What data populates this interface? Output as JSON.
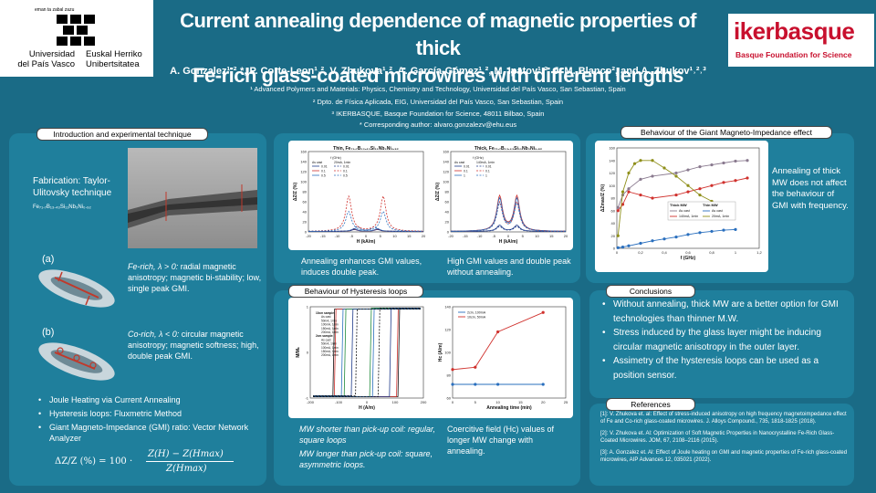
{
  "header": {
    "title_line1": "Current annealing dependence of magnetic properties of thick",
    "title_line2": "Fe-rich glass-coated microwires with different lengths",
    "authors": "A. Gonzalez¹˒²˒*, P. Corte-Leon¹˒², V. Zhukova¹˒², A. García-Gómez¹˒², M. Ipatov¹˒², J. M. Blanco², and A. Zhukov¹˒²˒³",
    "affiliations": [
      "¹ Advanced Polymers and Materials: Physics, Chemistry and Technology, Universidad del País Vasco, San Sebastian, Spain",
      "² Dpto. de Física Aplicada, EIG, Universidad del País Vasco, San Sebastian, Spain",
      "³ IKERBASQUE, Basque Foundation for Science, 48011 Bilbao, Spain",
      "* Corresponding author: alvaro.gonzalezv@ehu.eus"
    ],
    "upv_logo": {
      "motto": "eman ta zabal zazu",
      "left1": "Universidad",
      "left2": "del País Vasco",
      "right1": "Euskal Herriko",
      "right2": "Unibertsitatea"
    },
    "ikerbasque_logo": {
      "name": "ikerbasque",
      "sub": "Basque Foundation for Science"
    }
  },
  "intro": {
    "header": "Introduction and experimental technique",
    "fabrication": "Fabrication: Taylor-Ulitovsky technique",
    "composition": "Fe₇₁.₇B₁₃.₄₃Si₁₁Nb₃Ni₀.₉₂",
    "label_a": "(a)",
    "label_b": "(b)",
    "fe_rich_lead": "Fe-rich, λ > 0:",
    "fe_rich_text": " radial magnetic anisotropy; magnetic bi-stability; low, single peak GMI.",
    "co_rich_lead": "Co-rich, λ < 0:",
    "co_rich_text": " circular magnetic anisotropy; magnetic softness; high, double peak GMI.",
    "bullets": [
      "Joule Heating via Current Annealing",
      "Hysteresis loops: Fluxmetric Method",
      "Giant Magneto-Impedance (GMI) ratio: Vector Network Analyzer"
    ],
    "formula_lhs": "ΔZ/Z (%) = 100 ·",
    "formula_num": "Z(H) − Z(Hmax)",
    "formula_den": "Z(Hmax)"
  },
  "gmi_field": {
    "caption_left": "Annealing enhances GMI values, induces double peak.",
    "caption_right": "High GMI values and double peak without annealing."
  },
  "giant_mi": {
    "header": "Behaviour of the Giant Magneto-Impedance effect",
    "note": "Annealing of thick MW does not affect the behaviour of GMI with frequency."
  },
  "hysteresis": {
    "header": "Behaviour of Hysteresis loops",
    "caption_left_1": "MW shorter than pick-up coil: regular, square loops",
    "caption_left_2": "MW longer than pick-up coil: square, asymmetric loops.",
    "caption_right": "Coercitive field (Hc) values of longer MW change with annealing."
  },
  "conclusions": {
    "header": "Conclusions",
    "items": [
      "Without annealing, thick MW are a better option for GMI technologies than thinner M.W.",
      "Stress induced by the glass layer might be inducing circular magnetic anisotropy in the outer layer.",
      "Assimetry of the hysteresis loops can be used as a position sensor."
    ]
  },
  "references": {
    "header": "References",
    "items": [
      "[1]: V. Zhukova et. al: Effect of stress-induced anisotropy on high frequency magnetoimpedance effect of Fe and Co-rich glass-coated microwires. J. Alloys Compound., 735, 1818-1825 (2018).",
      "[2]: V. Zhukova et. Al: Optimization of Soft Magnetic Properties in Nanocrystalline Fe-Rich Glass-Coated Microwires. JOM, 67, 2108–2116 (2015).",
      "[3]: A. Gonzalez et. Al: Effect of Joule heating on GMI and magnetic properties of Fe-rich glass-coated microwires, AIP Advances 12, 035021 (2022)."
    ]
  },
  "chart_data": [
    {
      "type": "line",
      "panel": "gmi-field-left",
      "title": "Thin, Fe₇₁.₇B₁₃.₄₃Si₁₁Nb₃Ni₀.₉₂",
      "xlabel": "H (kA/m)",
      "ylabel": "ΔZ/Z (%)",
      "xlim": [
        -20,
        20
      ],
      "ylim": [
        0,
        160
      ],
      "xticks": [
        -20,
        -15,
        -10,
        -5,
        0,
        5,
        10,
        15,
        20
      ],
      "yticks": [
        0,
        20,
        40,
        60,
        80,
        100,
        120,
        140,
        160
      ],
      "legend_title": "f (GHz)",
      "legend_cols": [
        "As cast",
        "20mA, 1min"
      ],
      "legend_rows": [
        "0.01",
        "0.1",
        "0.5"
      ],
      "series": [
        {
          "name": "As cast 0.01",
          "color": "#1f3b8a",
          "dash": false,
          "peak": 8,
          "width": 4
        },
        {
          "name": "As cast 0.1",
          "color": "#d0312d",
          "dash": false,
          "peak": 10,
          "width": 4
        },
        {
          "name": "As cast 0.5",
          "color": "#2a6fbe",
          "dash": false,
          "peak": 12,
          "width": 4
        },
        {
          "name": "20mA 0.01",
          "color": "#1f3b8a",
          "dash": true,
          "peak": 20,
          "width": 3
        },
        {
          "name": "20mA 0.1",
          "color": "#d0312d",
          "dash": true,
          "peak": 140,
          "width": 6
        },
        {
          "name": "20mA 0.5",
          "color": "#2a6fbe",
          "dash": true,
          "peak": 80,
          "width": 6
        }
      ]
    },
    {
      "type": "line",
      "panel": "gmi-field-right",
      "title": "Thick, Fe₇₁.₇B₁₃.₄₃Si₁₁Nb₃Ni₀.₉₂",
      "xlabel": "H (kA/m)",
      "ylabel": "ΔZ/Z (%)",
      "xlim": [
        -20,
        20
      ],
      "ylim": [
        0,
        160
      ],
      "xticks": [
        -20,
        -15,
        -10,
        -5,
        0,
        5,
        10,
        15,
        20
      ],
      "yticks": [
        0,
        20,
        40,
        60,
        80,
        100,
        120,
        140,
        160
      ],
      "legend_title": "f (GHz)",
      "legend_cols": [
        "As cast",
        "140mA, 1min"
      ],
      "legend_rows": [
        "0.01",
        "0.1",
        "1"
      ],
      "series": [
        {
          "name": "As cast 0.01",
          "color": "#1f3b8a",
          "dash": false,
          "peak": 25,
          "width": 3
        },
        {
          "name": "As cast 0.1",
          "color": "#d0312d",
          "dash": false,
          "peak": 140,
          "width": 3
        },
        {
          "name": "As cast 1",
          "color": "#2a6fbe",
          "dash": false,
          "peak": 130,
          "width": 3
        },
        {
          "name": "140mA 0.01",
          "color": "#1f3b8a",
          "dash": true,
          "peak": 20,
          "width": 3
        },
        {
          "name": "140mA 0.1",
          "color": "#d0312d",
          "dash": true,
          "peak": 115,
          "width": 3
        },
        {
          "name": "140mA 1",
          "color": "#2a6fbe",
          "dash": true,
          "peak": 110,
          "width": 3
        }
      ]
    },
    {
      "type": "line",
      "panel": "gmi-frequency",
      "xlabel": "f (GHz)",
      "ylabel": "ΔZmax/Z (%)",
      "xlim": [
        0,
        1.2
      ],
      "ylim": [
        0,
        160
      ],
      "xticks": [
        0,
        0.2,
        0.4,
        0.6,
        0.8,
        1.0,
        1.2
      ],
      "xtick_labels": [
        "0",
        "0,2",
        "0,4",
        "0,6",
        "0,8",
        "1",
        "1,2"
      ],
      "yticks": [
        0,
        20,
        40,
        60,
        80,
        100,
        120,
        140,
        160
      ],
      "legend": [
        "Thick MW",
        "Thin MW",
        "As cast",
        "As cast",
        "140mA, 1min",
        "20mA, 1min"
      ],
      "series": [
        {
          "name": "Thick As cast",
          "color": "#8a7a8f",
          "x": [
            0.01,
            0.05,
            0.1,
            0.2,
            0.3,
            0.5,
            0.6,
            0.7,
            0.8,
            0.9,
            1.0,
            1.1
          ],
          "y": [
            65,
            85,
            95,
            110,
            115,
            120,
            125,
            130,
            133,
            136,
            139,
            140
          ]
        },
        {
          "name": "Thick 140mA, 1min",
          "color": "#d0312d",
          "x": [
            0.01,
            0.05,
            0.1,
            0.2,
            0.3,
            0.5,
            0.6,
            0.7,
            0.8,
            0.9,
            1.0,
            1.1
          ],
          "y": [
            60,
            70,
            90,
            85,
            80,
            85,
            90,
            95,
            100,
            105,
            108,
            112
          ]
        },
        {
          "name": "Thin As cast",
          "color": "#2a6fbe",
          "x": [
            0.01,
            0.05,
            0.1,
            0.2,
            0.3,
            0.4,
            0.5,
            0.6,
            0.7,
            0.8,
            0.9,
            1.0
          ],
          "y": [
            1,
            2,
            4,
            8,
            12,
            15,
            18,
            22,
            25,
            27,
            29,
            30
          ]
        },
        {
          "name": "Thin 20mA, 1min",
          "color": "#8f8f1a",
          "x": [
            0.01,
            0.05,
            0.1,
            0.15,
            0.2,
            0.3,
            0.4,
            0.5,
            0.6,
            0.7,
            0.8
          ],
          "y": [
            20,
            90,
            120,
            135,
            140,
            140,
            128,
            115,
            100,
            85,
            75
          ]
        }
      ]
    },
    {
      "type": "line",
      "panel": "hysteresis-loops",
      "xlabel": "H (A/m)",
      "ylabel": "M/Mₛ",
      "xlim": [
        -200,
        200
      ],
      "ylim": [
        -1,
        1
      ],
      "xticks": [
        -200,
        -100,
        0,
        100,
        200
      ],
      "yticks": [
        -1,
        0,
        1
      ],
      "legend": [
        "10cm sample:",
        "As cast",
        "50mA, 1min",
        "100mA, 1min",
        "150mA, 1min",
        "200mA, 1min",
        "2cm sample:",
        "As cast",
        "50mA, 1min",
        "100mA, 1min",
        "150mA, 1min",
        "200mA, 1min"
      ],
      "loops": [
        {
          "color": "#111111",
          "hc_left": -120,
          "hc_right": 110,
          "dash": false
        },
        {
          "color": "#d0312d",
          "hc_left": -115,
          "hc_right": 105,
          "dash": false
        },
        {
          "color": "#2a6fbe",
          "hc_left": -90,
          "hc_right": 20,
          "dash": false
        },
        {
          "color": "#1f8a3a",
          "hc_left": -80,
          "hc_right": 10,
          "dash": false
        },
        {
          "color": "#1f3b8a",
          "hc_left": -55,
          "hc_right": 80,
          "dash": false
        },
        {
          "color": "#111111",
          "hc_left": -40,
          "hc_right": 40,
          "dash": true
        }
      ]
    },
    {
      "type": "line",
      "panel": "coercive-field",
      "xlabel": "Annealing time (min)",
      "ylabel": "Hc (A/m)",
      "xlim": [
        0,
        25
      ],
      "ylim": [
        60,
        140
      ],
      "xticks": [
        0,
        5,
        10,
        15,
        20,
        25
      ],
      "yticks": [
        60,
        80,
        100,
        120,
        140
      ],
      "series": [
        {
          "name": "2cm, 100mA",
          "color": "#2a6fbe",
          "x": [
            0,
            5,
            10,
            20
          ],
          "y": [
            72,
            72,
            72,
            72
          ]
        },
        {
          "name": "10cm, 50mA",
          "color": "#d0312d",
          "x": [
            0,
            5,
            10,
            20
          ],
          "y": [
            85,
            87,
            118,
            135
          ]
        }
      ]
    }
  ]
}
